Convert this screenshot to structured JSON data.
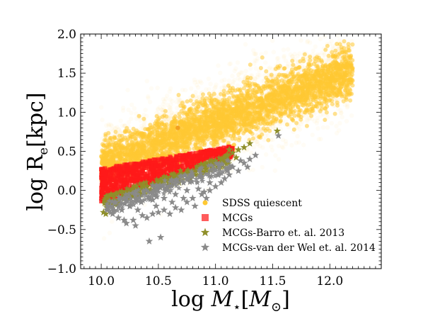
{
  "chart_data": {
    "type": "scatter",
    "xlabel_parts": [
      "log ",
      "M",
      "⋆",
      "[",
      "M",
      "⊙",
      "]"
    ],
    "ylabel_parts": [
      "log R",
      "e",
      "[kpc]"
    ],
    "xlim": [
      9.82,
      12.45
    ],
    "ylim": [
      -1.0,
      2.0
    ],
    "x_ticks": [
      {
        "value": 10.0,
        "label": "10.0"
      },
      {
        "value": 10.5,
        "label": "10.5"
      },
      {
        "value": 11.0,
        "label": "11.0"
      },
      {
        "value": 11.5,
        "label": "11.5"
      },
      {
        "value": 12.0,
        "label": "12.0"
      }
    ],
    "y_ticks": [
      {
        "value": -1.0,
        "label": "−1.0"
      },
      {
        "value": -0.5,
        "label": "−0.5"
      },
      {
        "value": 0.0,
        "label": "0.0"
      },
      {
        "value": 0.5,
        "label": "0.5"
      },
      {
        "value": 1.0,
        "label": "1.0"
      },
      {
        "value": 1.5,
        "label": "1.5"
      },
      {
        "value": 2.0,
        "label": "2.0"
      }
    ],
    "grid": false,
    "legend_position": "lower-right",
    "series": [
      {
        "name": "SDSS quiescent",
        "marker": "circle",
        "color": "#ffc933",
        "distribution": {
          "x_range": [
            10.0,
            12.2
          ],
          "relation_slope": 0.55,
          "relation_at_x10": 0.32,
          "scatter": 0.16
        },
        "highlight_point": [
          10.67,
          0.8
        ]
      },
      {
        "name": "MCGs",
        "marker": "square",
        "color": "#ff1a1a",
        "distribution": {
          "x_range": [
            10.0,
            11.15
          ],
          "upper_at_x10": 0.28,
          "upper_slope": 0.25,
          "lower_at_x10": -0.15,
          "lower_slope": 0.5
        }
      },
      {
        "name": "MCGs-Barro et. al. 2013",
        "marker": "star",
        "color": "#8f8f2a",
        "points": [
          [
            10.02,
            -0.28
          ],
          [
            10.05,
            -0.22
          ],
          [
            10.08,
            -0.17
          ],
          [
            10.12,
            -0.13
          ],
          [
            10.15,
            -0.12
          ],
          [
            10.18,
            -0.08
          ],
          [
            10.22,
            -0.05
          ],
          [
            10.25,
            -0.03
          ],
          [
            10.3,
            0.0
          ],
          [
            10.35,
            0.02
          ],
          [
            10.4,
            0.05
          ],
          [
            10.45,
            0.08
          ],
          [
            10.5,
            0.1
          ],
          [
            10.55,
            0.12
          ],
          [
            10.6,
            0.15
          ],
          [
            10.65,
            0.18
          ],
          [
            10.7,
            0.2
          ],
          [
            10.75,
            0.22
          ],
          [
            10.8,
            0.25
          ],
          [
            10.85,
            0.28
          ],
          [
            10.9,
            0.3
          ],
          [
            10.95,
            0.33
          ],
          [
            11.0,
            0.38
          ],
          [
            11.05,
            0.4
          ],
          [
            11.1,
            0.45
          ],
          [
            11.15,
            0.48
          ],
          [
            11.2,
            0.52
          ],
          [
            11.25,
            0.55
          ],
          [
            11.3,
            0.6
          ],
          [
            11.54,
            0.76
          ],
          [
            10.1,
            -0.2
          ],
          [
            10.2,
            -0.1
          ],
          [
            10.28,
            -0.08
          ],
          [
            10.38,
            -0.02
          ],
          [
            10.48,
            0.02
          ],
          [
            10.58,
            0.06
          ],
          [
            10.68,
            0.1
          ],
          [
            10.78,
            0.15
          ],
          [
            10.88,
            0.2
          ],
          [
            10.98,
            0.28
          ],
          [
            11.08,
            0.35
          ],
          [
            11.12,
            0.52
          ],
          [
            10.04,
            -0.3
          ],
          [
            10.14,
            -0.18
          ],
          [
            10.33,
            -0.05
          ],
          [
            10.62,
            0.08
          ],
          [
            10.82,
            0.2
          ],
          [
            11.02,
            0.3
          ],
          [
            11.18,
            0.42
          ]
        ]
      },
      {
        "name": "MCGs-van der Wel et. al. 2014",
        "marker": "star",
        "color": "#8a8a8a",
        "points": [
          [
            10.42,
            -0.65
          ],
          [
            10.52,
            -0.6
          ],
          [
            10.1,
            -0.3
          ],
          [
            10.15,
            -0.35
          ],
          [
            10.2,
            -0.38
          ],
          [
            10.22,
            -0.42
          ],
          [
            10.28,
            -0.38
          ],
          [
            10.3,
            -0.45
          ],
          [
            10.36,
            -0.32
          ],
          [
            10.4,
            -0.35
          ],
          [
            10.45,
            -0.3
          ],
          [
            10.5,
            -0.28
          ],
          [
            10.55,
            -0.25
          ],
          [
            10.6,
            -0.3
          ],
          [
            10.65,
            -0.22
          ],
          [
            10.7,
            -0.25
          ],
          [
            10.75,
            -0.15
          ],
          [
            10.8,
            -0.1
          ],
          [
            10.82,
            -0.2
          ],
          [
            10.88,
            -0.05
          ],
          [
            10.92,
            -0.1
          ],
          [
            10.95,
            0.0
          ],
          [
            11.0,
            0.05
          ],
          [
            11.05,
            0.1
          ],
          [
            11.08,
            0.15
          ],
          [
            11.12,
            0.2
          ],
          [
            11.2,
            0.25
          ],
          [
            11.25,
            0.35
          ],
          [
            11.3,
            0.4
          ],
          [
            11.35,
            0.45
          ],
          [
            11.55,
            0.7
          ],
          [
            10.05,
            -0.25
          ],
          [
            10.08,
            -0.2
          ],
          [
            10.12,
            -0.15
          ],
          [
            10.25,
            -0.2
          ],
          [
            10.35,
            -0.15
          ],
          [
            10.45,
            -0.12
          ],
          [
            10.55,
            -0.1
          ],
          [
            10.65,
            -0.05
          ],
          [
            10.75,
            0.0
          ],
          [
            10.85,
            0.02
          ],
          [
            10.95,
            0.1
          ],
          [
            11.02,
            0.2
          ],
          [
            11.15,
            0.3
          ],
          [
            11.22,
            0.38
          ],
          [
            11.28,
            0.3
          ],
          [
            10.18,
            -0.25
          ],
          [
            10.32,
            -0.25
          ],
          [
            10.48,
            -0.2
          ],
          [
            10.62,
            -0.15
          ],
          [
            10.72,
            -0.1
          ],
          [
            10.9,
            -0.02
          ],
          [
            11.1,
            0.25
          ]
        ]
      }
    ]
  }
}
